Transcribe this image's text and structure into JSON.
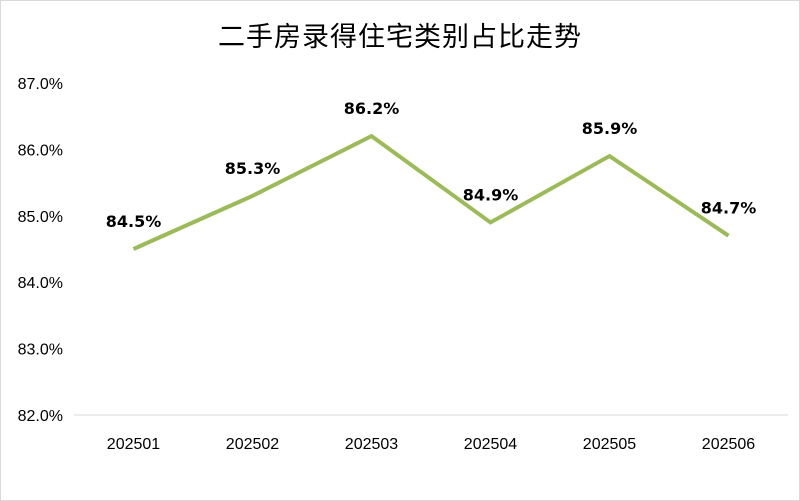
{
  "chart_data": {
    "type": "line",
    "title": "二手房录得住宅类别占比走势",
    "xlabel": "",
    "ylabel": "",
    "categories": [
      "202501",
      "202502",
      "202503",
      "202504",
      "202505",
      "202506"
    ],
    "series": [
      {
        "values": [
          84.5,
          85.3,
          86.2,
          84.9,
          85.9,
          84.7
        ],
        "labels": [
          "84.5%",
          "85.3%",
          "86.2%",
          "84.9%",
          "85.9%",
          "84.7%"
        ],
        "color": "#9bbb59"
      }
    ],
    "ylim": [
      82.0,
      87.0
    ],
    "y_ticks": [
      82.0,
      83.0,
      84.0,
      85.0,
      86.0,
      87.0
    ],
    "y_tick_labels": [
      "82.0%",
      "83.0%",
      "84.0%",
      "85.0%",
      "86.0%",
      "87.0%"
    ],
    "grid": false,
    "legend": "none"
  }
}
